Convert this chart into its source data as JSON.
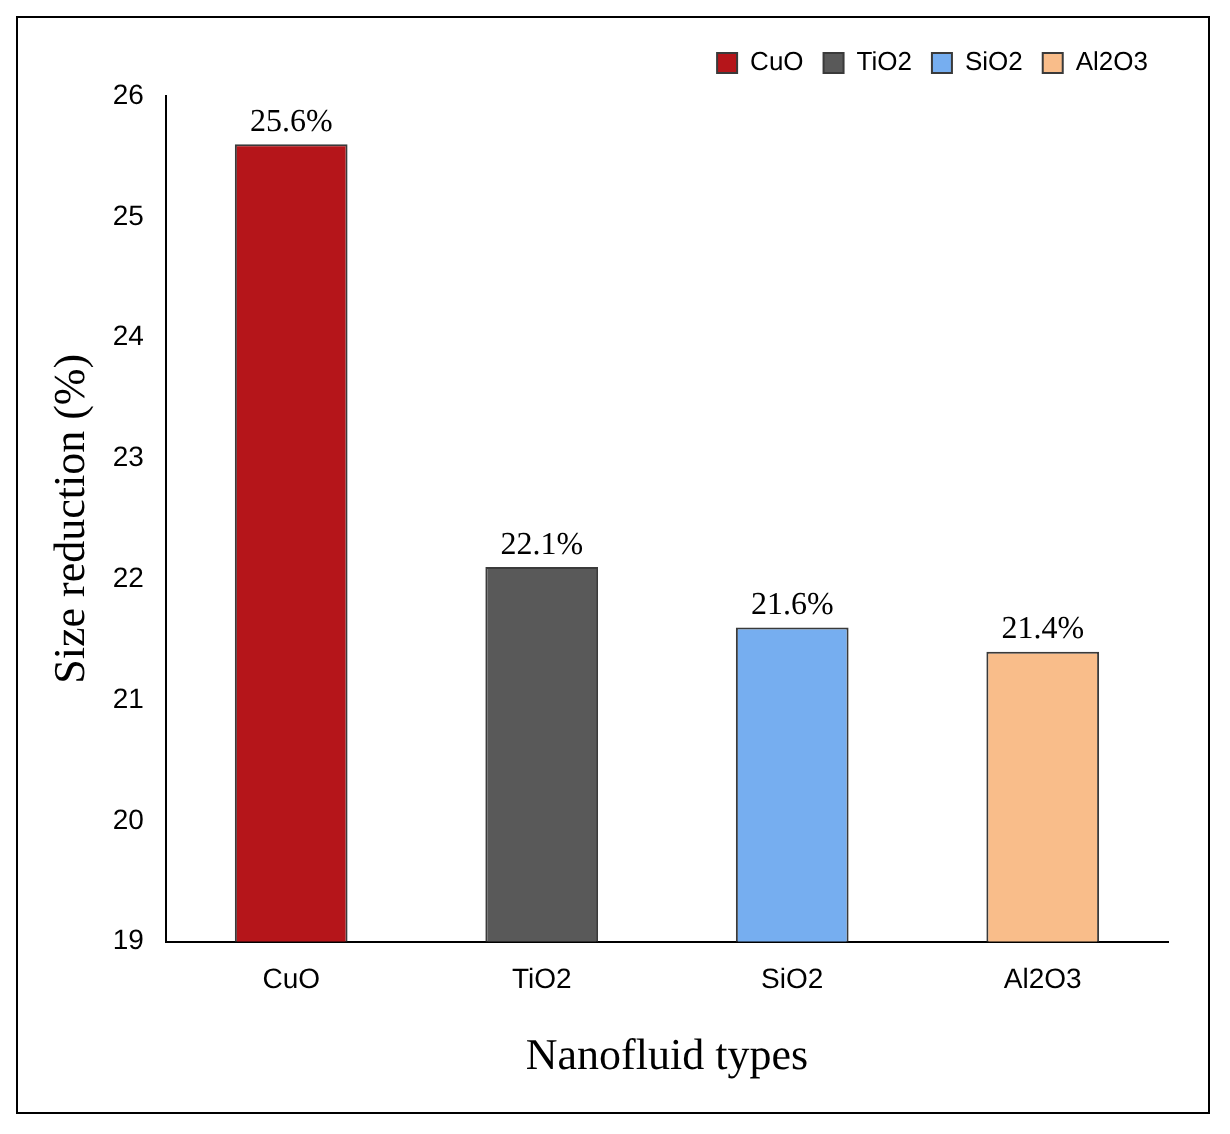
{
  "chart_data": {
    "type": "bar",
    "xlabel": "Nanofluid types",
    "ylabel": "Size reduction (%)",
    "categories": [
      "CuO",
      "TiO2",
      "SiO2",
      "Al2O3"
    ],
    "series": [
      {
        "name": "CuO",
        "color": "#b5151a",
        "values": [
          25.6,
          null,
          null,
          null
        ],
        "value_labels": [
          "25.6%",
          null,
          null,
          null
        ]
      },
      {
        "name": "TiO2",
        "color": "#595959",
        "values": [
          null,
          22.1,
          null,
          null
        ],
        "value_labels": [
          null,
          "22.1%",
          null,
          null
        ]
      },
      {
        "name": "SiO2",
        "color": "#76aef0",
        "values": [
          null,
          null,
          21.6,
          null
        ],
        "value_labels": [
          null,
          null,
          "21.6%",
          null
        ]
      },
      {
        "name": "Al2O3",
        "color": "#f9bd8a",
        "values": [
          null,
          null,
          null,
          21.4
        ],
        "value_labels": [
          null,
          null,
          null,
          "21.4%"
        ]
      }
    ],
    "ylim": [
      19,
      26
    ],
    "yticks": [
      19,
      20,
      21,
      22,
      23,
      24,
      25,
      26
    ],
    "grid": false,
    "legend": "top right"
  }
}
